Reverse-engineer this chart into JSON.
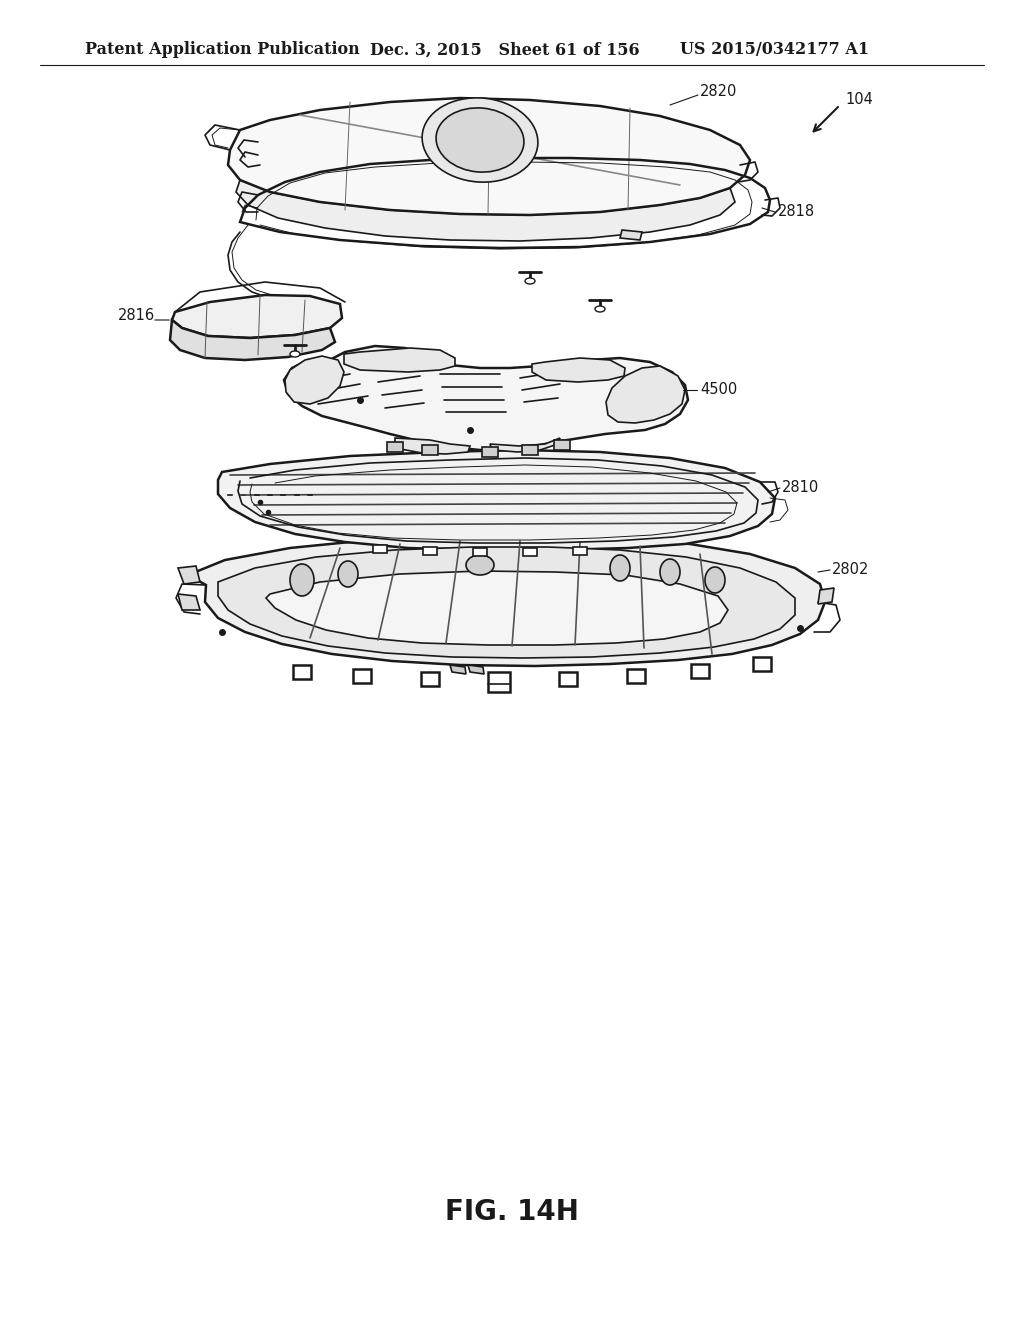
{
  "header_left": "Patent Application Publication",
  "header_mid": "Dec. 3, 2015   Sheet 61 of 156",
  "header_right": "US 2015/0342177 A1",
  "figure_label": "FIG. 14H",
  "bg_color": "#ffffff",
  "line_color": "#1a1a1a",
  "header_fontsize": 11.5,
  "label_fontsize": 10.5,
  "fig_label_fontsize": 20
}
